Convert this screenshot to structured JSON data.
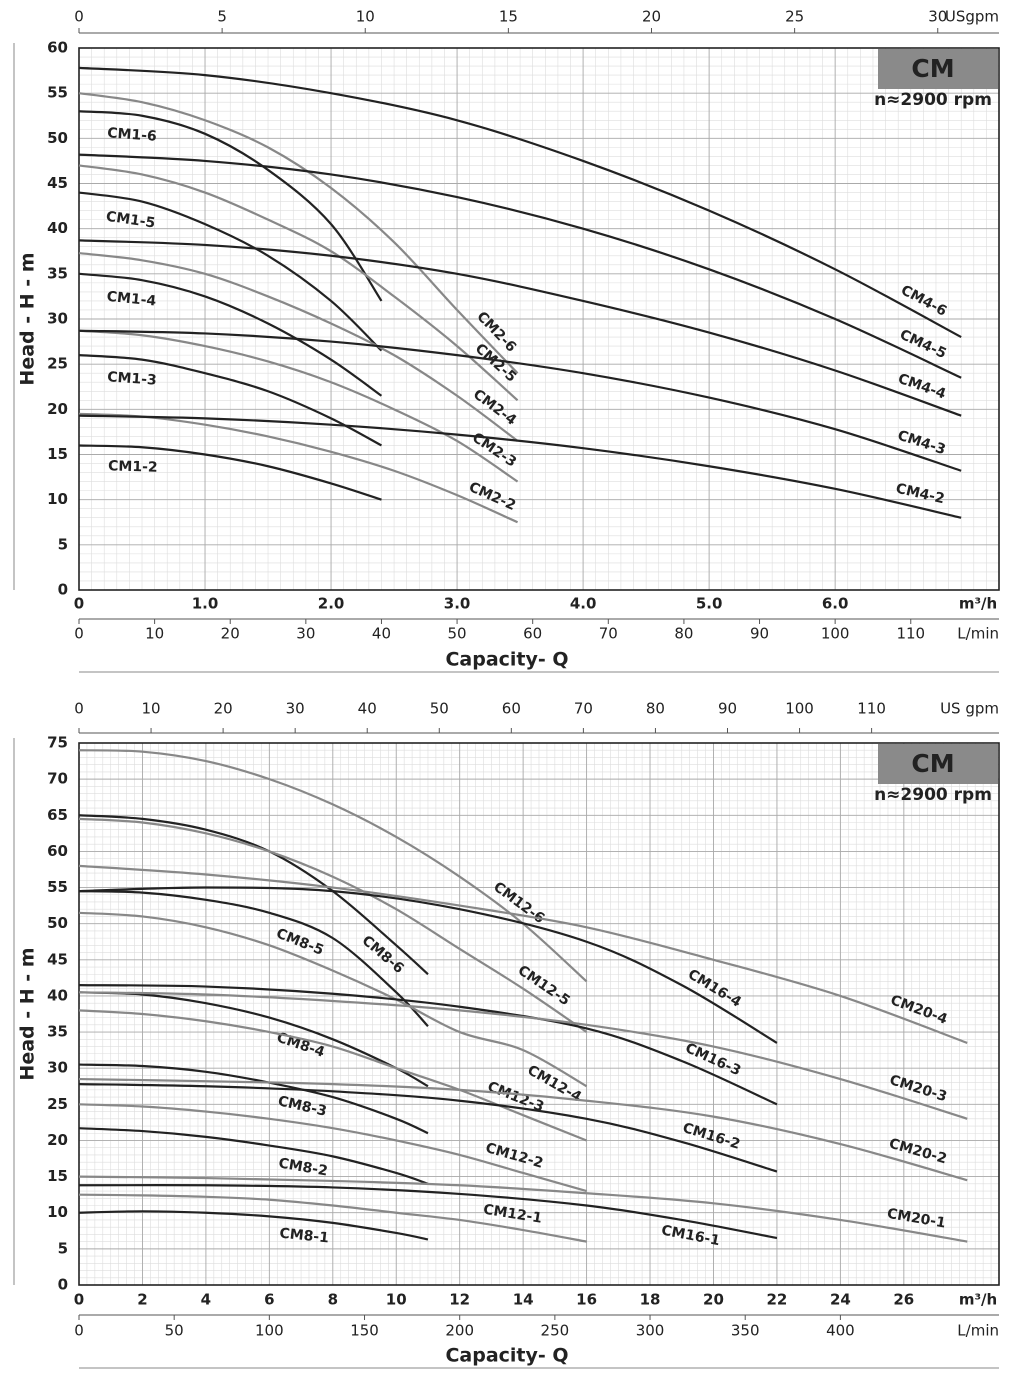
{
  "chart_data": [
    {
      "type": "line",
      "badge": "CM",
      "subtitle": "n≈2900 rpm",
      "ylabel": "Head - H - m",
      "xlabel": "Capacity- Q",
      "x_unit": "m³/h",
      "xlim": [
        0,
        7.3
      ],
      "xticks": [
        0,
        {
          "value": 1,
          "label": "1.0"
        },
        {
          "value": 2,
          "label": "2.0"
        },
        {
          "value": 3,
          "label": "3.0"
        },
        {
          "value": 4,
          "label": "4.0"
        },
        {
          "value": 5,
          "label": "5.0"
        },
        {
          "value": 6,
          "label": "6.0"
        }
      ],
      "ylim": [
        0,
        60
      ],
      "yticks": [
        0,
        5,
        10,
        15,
        20,
        25,
        30,
        35,
        40,
        45,
        50,
        55,
        60
      ],
      "grid": true,
      "lmin_axis": {
        "unit": "L/min",
        "lim": [
          0,
          121.67
        ],
        "ticks": [
          0,
          10,
          20,
          30,
          40,
          50,
          60,
          70,
          80,
          90,
          100,
          110
        ]
      },
      "gpm_axis": {
        "unit": "USgpm",
        "lim": [
          0,
          32.14
        ],
        "ticks": [
          0,
          5,
          10,
          15,
          20,
          25,
          30
        ]
      },
      "series": [
        {
          "name": "CM1-6",
          "color": "#222222",
          "x": [
            0,
            0.5,
            1,
            1.5,
            2,
            2.4
          ],
          "values": [
            53,
            52.5,
            50.5,
            46.5,
            40.5,
            32
          ]
        },
        {
          "name": "CM1-5",
          "color": "#222222",
          "x": [
            0,
            0.5,
            1,
            1.5,
            2,
            2.4
          ],
          "values": [
            44,
            43,
            40.5,
            37,
            32,
            26.5
          ]
        },
        {
          "name": "CM1-4",
          "color": "#222222",
          "x": [
            0,
            0.5,
            1,
            1.5,
            2,
            2.4
          ],
          "values": [
            35,
            34.3,
            32.5,
            29.5,
            25.5,
            21.5
          ]
        },
        {
          "name": "CM1-3",
          "color": "#222222",
          "x": [
            0,
            0.5,
            1,
            1.5,
            2,
            2.4
          ],
          "values": [
            26,
            25.5,
            24,
            22,
            19,
            16
          ]
        },
        {
          "name": "CM1-2",
          "color": "#222222",
          "x": [
            0,
            0.5,
            1,
            1.5,
            2,
            2.4
          ],
          "values": [
            16,
            15.8,
            15,
            13.7,
            11.8,
            10
          ]
        },
        {
          "name": "CM2-6",
          "color": "#888888",
          "x": [
            0,
            0.5,
            1,
            1.5,
            2,
            2.5,
            3,
            3.48
          ],
          "values": [
            55,
            54,
            52,
            49,
            44.5,
            38.5,
            31,
            24
          ]
        },
        {
          "name": "CM2-5",
          "color": "#888888",
          "x": [
            0,
            0.5,
            1,
            1.5,
            2,
            2.5,
            3,
            3.48
          ],
          "values": [
            47,
            46,
            44,
            41,
            37.5,
            32.5,
            27,
            21
          ]
        },
        {
          "name": "CM2-4",
          "color": "#888888",
          "x": [
            0,
            0.5,
            1,
            1.5,
            2,
            2.5,
            3,
            3.48
          ],
          "values": [
            37.3,
            36.5,
            35,
            32.5,
            29.5,
            26,
            21.5,
            16.5
          ]
        },
        {
          "name": "CM2-3",
          "color": "#888888",
          "x": [
            0,
            0.5,
            1,
            1.5,
            2,
            2.5,
            3,
            3.48
          ],
          "values": [
            28.7,
            28.2,
            27,
            25.3,
            23,
            20,
            16.5,
            12
          ]
        },
        {
          "name": "CM2-2",
          "color": "#888888",
          "x": [
            0,
            0.5,
            1,
            1.5,
            2,
            2.5,
            3,
            3.48
          ],
          "values": [
            19.5,
            19.2,
            18.3,
            17,
            15.3,
            13.2,
            10.5,
            7.5
          ]
        },
        {
          "name": "CM4-6",
          "color": "#222222",
          "x": [
            0,
            1,
            2,
            3,
            4,
            5,
            6,
            7
          ],
          "values": [
            57.8,
            57,
            55,
            52,
            47.5,
            42,
            35.5,
            28
          ]
        },
        {
          "name": "CM4-5",
          "color": "#222222",
          "x": [
            0,
            1,
            2,
            3,
            4,
            5,
            6,
            7
          ],
          "values": [
            48.2,
            47.5,
            46,
            43.5,
            40,
            35.5,
            30,
            23.5
          ]
        },
        {
          "name": "CM4-4",
          "color": "#222222",
          "x": [
            0,
            1,
            2,
            3,
            4,
            5,
            6,
            7
          ],
          "values": [
            38.7,
            38.2,
            37,
            35,
            32,
            28.5,
            24.3,
            19.3
          ]
        },
        {
          "name": "CM4-3",
          "color": "#222222",
          "x": [
            0,
            1,
            2,
            3,
            4,
            5,
            6,
            7
          ],
          "values": [
            28.7,
            28.4,
            27.5,
            26,
            24,
            21.3,
            17.8,
            13.2
          ]
        },
        {
          "name": "CM4-2",
          "color": "#222222",
          "x": [
            0,
            1,
            2,
            3,
            4,
            5,
            6,
            7
          ],
          "values": [
            19.3,
            19,
            18.3,
            17.2,
            15.7,
            13.7,
            11.2,
            8
          ]
        }
      ]
    },
    {
      "type": "line",
      "badge": "CM",
      "subtitle": "n≈2900 rpm",
      "ylabel": "Head - H - m",
      "xlabel": "Capacity- Q",
      "x_unit": "m³/h",
      "xlim": [
        0,
        29
      ],
      "xticks": [
        0,
        2,
        4,
        6,
        8,
        10,
        12,
        14,
        16,
        18,
        20,
        22,
        24,
        26
      ],
      "ylim": [
        0,
        75
      ],
      "yticks": [
        0,
        5,
        10,
        15,
        20,
        25,
        30,
        35,
        40,
        45,
        50,
        55,
        60,
        65,
        70,
        75
      ],
      "grid": true,
      "lmin_axis": {
        "unit": "L/min",
        "lim": [
          0,
          483.33
        ],
        "ticks": [
          0,
          50,
          100,
          150,
          200,
          250,
          300,
          350,
          400
        ]
      },
      "gpm_axis": {
        "unit": "US gpm",
        "lim": [
          0,
          127.68
        ],
        "ticks": [
          0,
          10,
          20,
          30,
          40,
          50,
          60,
          70,
          80,
          90,
          100,
          110
        ]
      },
      "series": [
        {
          "name": "CM8-6",
          "color": "#222222",
          "x": [
            0,
            2,
            4,
            6,
            8,
            10,
            11
          ],
          "values": [
            65,
            64.5,
            63,
            60,
            54.5,
            47,
            43
          ]
        },
        {
          "name": "CM8-5",
          "color": "#222222",
          "x": [
            0,
            2,
            4,
            6,
            8,
            10,
            11
          ],
          "values": [
            54.5,
            54.3,
            53.3,
            51.5,
            48,
            40.5,
            35.8
          ]
        },
        {
          "name": "CM8-4",
          "color": "#222222",
          "x": [
            0,
            2,
            4,
            6,
            8,
            10,
            11
          ],
          "values": [
            40.5,
            40.2,
            39,
            37,
            34,
            30,
            27.5
          ]
        },
        {
          "name": "CM8-3",
          "color": "#222222",
          "x": [
            0,
            2,
            4,
            6,
            8,
            10,
            11
          ],
          "values": [
            30.5,
            30.3,
            29.5,
            28,
            26,
            23,
            21
          ]
        },
        {
          "name": "CM8-2",
          "color": "#222222",
          "x": [
            0,
            2,
            4,
            6,
            8,
            10,
            11
          ],
          "values": [
            21.7,
            21.3,
            20.5,
            19.3,
            17.8,
            15.5,
            14
          ]
        },
        {
          "name": "CM8-1",
          "color": "#222222",
          "x": [
            0,
            2,
            4,
            6,
            8,
            10,
            11
          ],
          "values": [
            10,
            10.2,
            10,
            9.5,
            8.6,
            7.2,
            6.3
          ]
        },
        {
          "name": "CM12-6",
          "color": "#888888",
          "x": [
            0,
            2,
            4,
            6,
            8,
            10,
            12,
            14,
            16
          ],
          "values": [
            74,
            73.8,
            72.5,
            70,
            66.5,
            62,
            56.5,
            50,
            42
          ]
        },
        {
          "name": "CM12-5",
          "color": "#888888",
          "x": [
            0,
            2,
            4,
            6,
            8,
            10,
            12,
            14,
            16
          ],
          "values": [
            64.5,
            64,
            62.5,
            60,
            56.5,
            52,
            46.5,
            41,
            35
          ]
        },
        {
          "name": "CM12-4",
          "color": "#888888",
          "x": [
            0,
            2,
            4,
            6,
            8,
            10,
            12,
            14,
            16
          ],
          "values": [
            51.5,
            51,
            49.5,
            47,
            43.5,
            39.5,
            35,
            32.5,
            27.5
          ]
        },
        {
          "name": "CM12-3",
          "color": "#888888",
          "x": [
            0,
            2,
            4,
            6,
            8,
            10,
            12,
            14,
            16
          ],
          "values": [
            38,
            37.5,
            36.5,
            35,
            33,
            30,
            27,
            23.5,
            20
          ]
        },
        {
          "name": "CM12-2",
          "color": "#888888",
          "x": [
            0,
            2,
            4,
            6,
            8,
            10,
            12,
            14,
            16
          ],
          "values": [
            25,
            24.7,
            24,
            23,
            21.7,
            20,
            18,
            15.5,
            13
          ]
        },
        {
          "name": "CM12-1",
          "color": "#888888",
          "x": [
            0,
            2,
            4,
            6,
            8,
            10,
            12,
            14,
            16
          ],
          "values": [
            12.5,
            12.4,
            12.2,
            11.8,
            11,
            10,
            9,
            7.6,
            6
          ]
        },
        {
          "name": "CM16-4",
          "color": "#222222",
          "x": [
            0,
            4,
            8,
            12,
            16,
            19,
            22
          ],
          "values": [
            54.5,
            55,
            54.5,
            52,
            47.5,
            41.5,
            33.5
          ]
        },
        {
          "name": "CM16-3",
          "color": "#222222",
          "x": [
            0,
            4,
            8,
            12,
            16,
            19,
            22
          ],
          "values": [
            41.5,
            41.3,
            40.3,
            38.5,
            35.5,
            31,
            25
          ]
        },
        {
          "name": "CM16-2",
          "color": "#222222",
          "x": [
            0,
            4,
            8,
            12,
            16,
            19,
            22
          ],
          "values": [
            27.8,
            27.5,
            26.8,
            25.5,
            23,
            19.8,
            15.7
          ]
        },
        {
          "name": "CM16-1",
          "color": "#222222",
          "x": [
            0,
            4,
            8,
            12,
            16,
            19,
            22
          ],
          "values": [
            13.8,
            13.8,
            13.5,
            12.6,
            11,
            9,
            6.5
          ]
        },
        {
          "name": "CM20-4",
          "color": "#888888",
          "x": [
            0,
            4,
            8,
            12,
            16,
            20,
            24,
            28
          ],
          "values": [
            58,
            56.8,
            55,
            52.5,
            49.5,
            45,
            40,
            33.5
          ]
        },
        {
          "name": "CM20-3",
          "color": "#888888",
          "x": [
            0,
            4,
            8,
            12,
            16,
            20,
            24,
            28
          ],
          "values": [
            40.5,
            40.2,
            39.3,
            38,
            36,
            33,
            28.5,
            23
          ]
        },
        {
          "name": "CM20-2",
          "color": "#888888",
          "x": [
            0,
            4,
            8,
            12,
            16,
            20,
            24,
            28
          ],
          "values": [
            28.5,
            28.2,
            27.8,
            27,
            25.5,
            23.3,
            19.5,
            14.5
          ]
        },
        {
          "name": "CM20-1",
          "color": "#888888",
          "x": [
            0,
            4,
            8,
            12,
            16,
            20,
            24,
            28
          ],
          "values": [
            15,
            14.8,
            14.4,
            13.8,
            12.7,
            11.3,
            9,
            6
          ]
        }
      ]
    }
  ]
}
